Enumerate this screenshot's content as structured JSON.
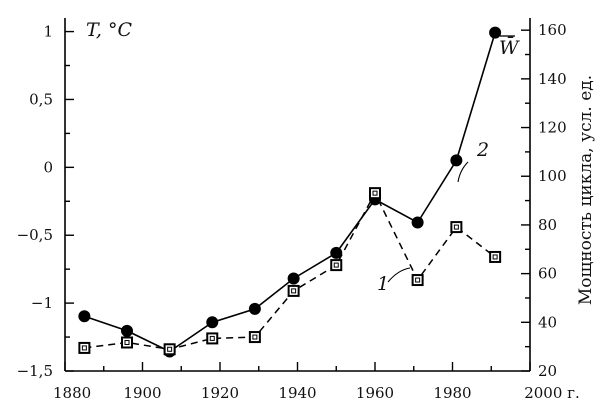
{
  "chart_data": {
    "type": "line",
    "x_axis": {
      "range": [
        1880,
        2000
      ],
      "ticks": [
        "1880",
        "1900",
        "1920",
        "1940",
        "1960",
        "1980",
        "2000 г."
      ],
      "tick_values": [
        1880,
        1900,
        1920,
        1940,
        1960,
        1980,
        2000
      ]
    },
    "y_left": {
      "label": "T, °C",
      "range": [
        -1.5,
        1.1
      ],
      "ticks": [
        "1",
        "0,5",
        "0",
        "−0,5",
        "−1",
        "−1,5"
      ],
      "tick_values": [
        1,
        0.5,
        0,
        -0.5,
        -1,
        -1.5
      ]
    },
    "y_right": {
      "label": "Мощность цикла, усл. ед.",
      "range": [
        20,
        165
      ],
      "ticks": [
        "160",
        "140",
        "120",
        "100",
        "80",
        "60",
        "40",
        "20"
      ],
      "tick_values": [
        160,
        140,
        120,
        100,
        80,
        60,
        40,
        20
      ]
    },
    "series": [
      {
        "name": "W̄",
        "marker": "circle",
        "line": "solid",
        "axis": "right",
        "x": [
          1885,
          1896,
          1907,
          1918,
          1929,
          1939,
          1950,
          1960,
          1971,
          1981,
          1991
        ],
        "values": [
          42.5,
          36.5,
          28,
          40,
          45.5,
          58,
          68.5,
          90.5,
          81,
          106.5,
          159
        ]
      },
      {
        "name": "",
        "marker": "square",
        "line": "dashed",
        "axis": "left",
        "x": [
          1885,
          1896,
          1907,
          1918,
          1929,
          1939,
          1950,
          1960,
          1971,
          1981,
          1991
        ],
        "values": [
          -1.33,
          -1.29,
          -1.34,
          -1.26,
          -1.25,
          -0.91,
          -0.72,
          -0.19,
          -0.83,
          -0.44,
          -0.66
        ]
      }
    ],
    "annotations": [
      {
        "text": "2",
        "series": 0
      },
      {
        "text": "1",
        "series": 1
      }
    ],
    "grid": false
  }
}
